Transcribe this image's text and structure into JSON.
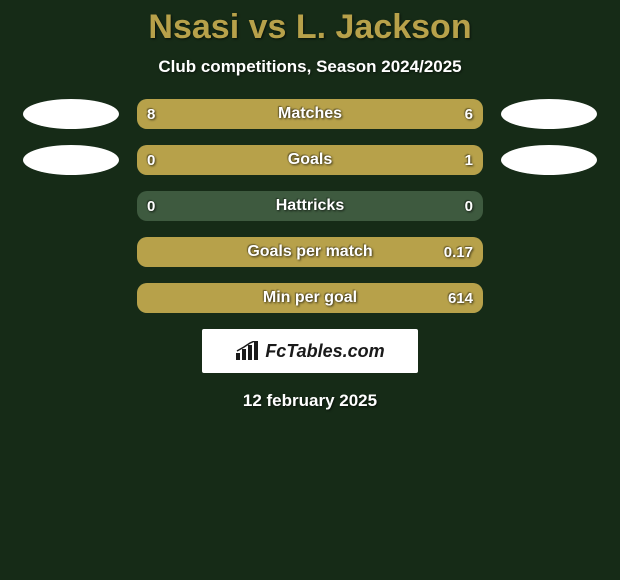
{
  "colors": {
    "background": "#162b17",
    "title": "#b7a14a",
    "barBase": "#3e5a3f",
    "playerLeft": "#b7a14a",
    "playerRight": "#b7a14a",
    "badge": "#ffffff",
    "logoBg": "#ffffff"
  },
  "title": "Nsasi vs L. Jackson",
  "subtitle": "Club competitions, Season 2024/2025",
  "date": "12 february 2025",
  "logoText": "FcTables.com",
  "rows": [
    {
      "label": "Matches",
      "leftVal": "8",
      "rightVal": "6",
      "leftPct": 20,
      "rightPct": 80,
      "showLeftBadge": true,
      "showRightBadge": true
    },
    {
      "label": "Goals",
      "leftVal": "0",
      "rightVal": "1",
      "leftPct": 20,
      "rightPct": 80,
      "showLeftBadge": true,
      "showRightBadge": true
    },
    {
      "label": "Hattricks",
      "leftVal": "0",
      "rightVal": "0",
      "leftPct": 0,
      "rightPct": 0,
      "showLeftBadge": false,
      "showRightBadge": false
    },
    {
      "label": "Goals per match",
      "leftVal": "",
      "rightVal": "0.17",
      "leftPct": 100,
      "rightPct": 0,
      "showLeftBadge": false,
      "showRightBadge": false
    },
    {
      "label": "Min per goal",
      "leftVal": "",
      "rightVal": "614",
      "leftPct": 100,
      "rightPct": 0,
      "showLeftBadge": false,
      "showRightBadge": false
    }
  ]
}
